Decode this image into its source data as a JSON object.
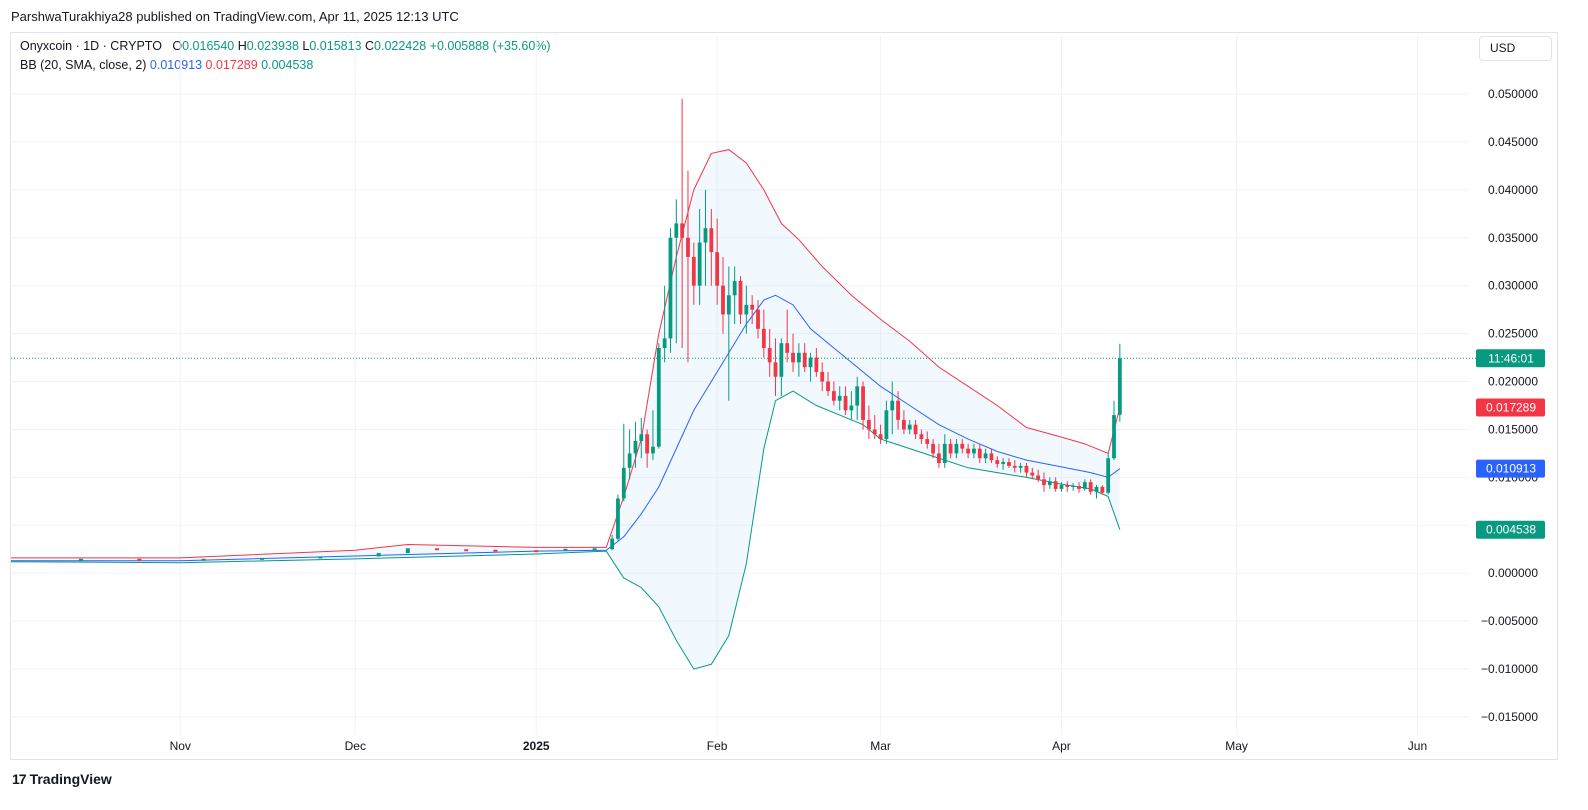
{
  "header": {
    "publisher_line": "ParshwaTurakhiya28 published on TradingView.com, Apr 11, 2025 12:13 UTC"
  },
  "legend": {
    "symbol": "Onyxcoin · 1D · CRYPTO",
    "open_label": "O",
    "open": "0.016540",
    "high_label": "H",
    "high": "0.023938",
    "low_label": "L",
    "low": "0.015813",
    "close_label": "C",
    "close": "0.022428",
    "change": "+0.005888 (+35.60%)",
    "indicator": "BB (20, SMA, close, 2)",
    "bb_basis": "0.010913",
    "bb_upper": "0.017289",
    "bb_lower": "0.004538"
  },
  "currency_button": "USD",
  "footer": {
    "brand": "TradingView",
    "logo_glyph": "17"
  },
  "colors": {
    "up": "#089981",
    "down": "#f23645",
    "basis": "#2962ff",
    "upper": "#f23645",
    "lower": "#089981",
    "band_fill": "#2196f3"
  },
  "chart_data": {
    "type": "candlestick",
    "title": "Onyxcoin · 1D · CRYPTO",
    "ylim": [
      -0.015,
      0.05
    ],
    "y_ticks": [
      "0.050000",
      "0.045000",
      "0.040000",
      "0.035000",
      "0.030000",
      "0.025000",
      "0.020000",
      "0.015000",
      "0.010000",
      "0.005000",
      "0.000000",
      "−0.005000",
      "−0.010000",
      "−0.015000"
    ],
    "x_ticks": [
      {
        "label": "Nov",
        "date": "2024-11-01",
        "bold": false
      },
      {
        "label": "Dec",
        "date": "2024-12-01",
        "bold": false
      },
      {
        "label": "2025",
        "date": "2025-01-01",
        "bold": true
      },
      {
        "label": "Feb",
        "date": "2025-02-01",
        "bold": false
      },
      {
        "label": "Mar",
        "date": "2025-03-01",
        "bold": false
      },
      {
        "label": "Apr",
        "date": "2025-04-01",
        "bold": false
      },
      {
        "label": "May",
        "date": "2025-05-01",
        "bold": false
      },
      {
        "label": "Jun",
        "date": "2025-06-01",
        "bold": false
      }
    ],
    "x_range": [
      "2024-10-03",
      "2025-06-10"
    ],
    "price_badges": [
      {
        "label": "11:46:01",
        "value": 0.022428,
        "color": "#089981"
      },
      {
        "label": "0.017289",
        "value": 0.017289,
        "color": "#f23645"
      },
      {
        "label": "0.010913",
        "value": 0.010913,
        "color": "#2962ff"
      },
      {
        "label": "0.004538",
        "value": 0.004538,
        "color": "#089981"
      }
    ],
    "current_price_line": 0.022428,
    "candles": [
      [
        "2025-01-14",
        0.0025,
        0.004,
        0.0024,
        0.0036
      ],
      [
        "2025-01-15",
        0.0036,
        0.0082,
        0.0034,
        0.0078
      ],
      [
        "2025-01-16",
        0.0078,
        0.0156,
        0.0075,
        0.011
      ],
      [
        "2025-01-17",
        0.011,
        0.015,
        0.0098,
        0.0125
      ],
      [
        "2025-01-18",
        0.0125,
        0.0158,
        0.011,
        0.0138
      ],
      [
        "2025-01-19",
        0.0138,
        0.0162,
        0.012,
        0.0145
      ],
      [
        "2025-01-20",
        0.0145,
        0.015,
        0.011,
        0.0125
      ],
      [
        "2025-01-21",
        0.0125,
        0.017,
        0.0118,
        0.0132
      ],
      [
        "2025-01-22",
        0.0132,
        0.024,
        0.013,
        0.0235
      ],
      [
        "2025-01-23",
        0.0235,
        0.03,
        0.022,
        0.0245
      ],
      [
        "2025-01-24",
        0.0245,
        0.036,
        0.023,
        0.035
      ],
      [
        "2025-01-25",
        0.035,
        0.039,
        0.024,
        0.0365
      ],
      [
        "2025-01-26",
        0.0365,
        0.0495,
        0.0235,
        0.035
      ],
      [
        "2025-01-27",
        0.035,
        0.042,
        0.022,
        0.033
      ],
      [
        "2025-01-28",
        0.033,
        0.0345,
        0.028,
        0.03
      ],
      [
        "2025-01-29",
        0.03,
        0.038,
        0.028,
        0.0345
      ],
      [
        "2025-01-30",
        0.0345,
        0.04,
        0.03,
        0.036
      ],
      [
        "2025-01-31",
        0.036,
        0.038,
        0.03,
        0.0335
      ],
      [
        "2025-02-01",
        0.0335,
        0.037,
        0.028,
        0.03
      ],
      [
        "2025-02-02",
        0.03,
        0.033,
        0.025,
        0.027
      ],
      [
        "2025-02-03",
        0.027,
        0.032,
        0.018,
        0.029
      ],
      [
        "2025-02-04",
        0.029,
        0.032,
        0.026,
        0.0305
      ],
      [
        "2025-02-05",
        0.0305,
        0.031,
        0.026,
        0.027
      ],
      [
        "2025-02-06",
        0.027,
        0.03,
        0.025,
        0.028
      ],
      [
        "2025-02-07",
        0.028,
        0.029,
        0.026,
        0.0275
      ],
      [
        "2025-02-08",
        0.0275,
        0.0285,
        0.0245,
        0.0255
      ],
      [
        "2025-02-09",
        0.0255,
        0.0275,
        0.0225,
        0.0235
      ],
      [
        "2025-02-10",
        0.0235,
        0.0255,
        0.0205,
        0.022
      ],
      [
        "2025-02-11",
        0.022,
        0.0245,
        0.0185,
        0.0205
      ],
      [
        "2025-02-12",
        0.0205,
        0.0245,
        0.0185,
        0.024
      ],
      [
        "2025-02-13",
        0.024,
        0.0275,
        0.022,
        0.023
      ],
      [
        "2025-02-14",
        0.023,
        0.025,
        0.021,
        0.022
      ],
      [
        "2025-02-15",
        0.022,
        0.024,
        0.0205,
        0.023
      ],
      [
        "2025-02-16",
        0.023,
        0.024,
        0.021,
        0.0215
      ],
      [
        "2025-02-17",
        0.0215,
        0.023,
        0.02,
        0.0225
      ],
      [
        "2025-02-18",
        0.0225,
        0.0235,
        0.0205,
        0.021
      ],
      [
        "2025-02-19",
        0.021,
        0.022,
        0.019,
        0.02
      ],
      [
        "2025-02-20",
        0.02,
        0.021,
        0.0185,
        0.019
      ],
      [
        "2025-02-21",
        0.019,
        0.02,
        0.0175,
        0.018
      ],
      [
        "2025-02-22",
        0.018,
        0.0195,
        0.017,
        0.0185
      ],
      [
        "2025-02-23",
        0.0185,
        0.0195,
        0.0165,
        0.017
      ],
      [
        "2025-02-24",
        0.017,
        0.019,
        0.016,
        0.0175
      ],
      [
        "2025-02-25",
        0.0175,
        0.0205,
        0.016,
        0.0195
      ],
      [
        "2025-02-26",
        0.0195,
        0.02,
        0.015,
        0.016
      ],
      [
        "2025-02-27",
        0.016,
        0.0175,
        0.014,
        0.015
      ],
      [
        "2025-02-28",
        0.015,
        0.0165,
        0.014,
        0.0145
      ],
      [
        "2025-03-01",
        0.0145,
        0.0155,
        0.0135,
        0.014
      ],
      [
        "2025-03-02",
        0.014,
        0.018,
        0.0135,
        0.017
      ],
      [
        "2025-03-03",
        0.017,
        0.02,
        0.0145,
        0.018
      ],
      [
        "2025-03-04",
        0.018,
        0.019,
        0.015,
        0.016
      ],
      [
        "2025-03-05",
        0.016,
        0.017,
        0.0145,
        0.015
      ],
      [
        "2025-03-06",
        0.015,
        0.016,
        0.0145,
        0.0155
      ],
      [
        "2025-03-07",
        0.0155,
        0.016,
        0.014,
        0.0145
      ],
      [
        "2025-03-08",
        0.0145,
        0.015,
        0.0135,
        0.014
      ],
      [
        "2025-03-09",
        0.014,
        0.0148,
        0.013,
        0.0135
      ],
      [
        "2025-03-10",
        0.0135,
        0.014,
        0.012,
        0.0125
      ],
      [
        "2025-03-11",
        0.0125,
        0.0135,
        0.011,
        0.0115
      ],
      [
        "2025-03-12",
        0.0115,
        0.0145,
        0.011,
        0.0135
      ],
      [
        "2025-03-13",
        0.0135,
        0.014,
        0.012,
        0.0125
      ],
      [
        "2025-03-14",
        0.0125,
        0.014,
        0.012,
        0.0135
      ],
      [
        "2025-03-15",
        0.0135,
        0.014,
        0.0125,
        0.013
      ],
      [
        "2025-03-16",
        0.013,
        0.0135,
        0.012,
        0.0125
      ],
      [
        "2025-03-17",
        0.0125,
        0.0135,
        0.012,
        0.013
      ],
      [
        "2025-03-18",
        0.013,
        0.0135,
        0.0115,
        0.012
      ],
      [
        "2025-03-19",
        0.012,
        0.013,
        0.0115,
        0.0125
      ],
      [
        "2025-03-20",
        0.0125,
        0.013,
        0.0115,
        0.0118
      ],
      [
        "2025-03-21",
        0.0118,
        0.0122,
        0.011,
        0.0114
      ],
      [
        "2025-03-22",
        0.0114,
        0.012,
        0.0108,
        0.0116
      ],
      [
        "2025-03-23",
        0.0116,
        0.012,
        0.011,
        0.0112
      ],
      [
        "2025-03-24",
        0.0112,
        0.0118,
        0.0105,
        0.011
      ],
      [
        "2025-03-25",
        0.011,
        0.0115,
        0.0105,
        0.0112
      ],
      [
        "2025-03-26",
        0.0112,
        0.0115,
        0.01,
        0.0105
      ],
      [
        "2025-03-27",
        0.0105,
        0.011,
        0.0098,
        0.0102
      ],
      [
        "2025-03-28",
        0.0102,
        0.0108,
        0.0095,
        0.0098
      ],
      [
        "2025-03-29",
        0.0098,
        0.0105,
        0.0085,
        0.0092
      ],
      [
        "2025-03-30",
        0.0092,
        0.01,
        0.0088,
        0.0096
      ],
      [
        "2025-03-31",
        0.0096,
        0.01,
        0.0085,
        0.0088
      ],
      [
        "2025-04-01",
        0.0088,
        0.0095,
        0.0085,
        0.0092
      ],
      [
        "2025-04-02",
        0.0092,
        0.0096,
        0.0085,
        0.009
      ],
      [
        "2025-04-03",
        0.009,
        0.0094,
        0.0086,
        0.0091
      ],
      [
        "2025-04-04",
        0.0091,
        0.0095,
        0.0084,
        0.0088
      ],
      [
        "2025-04-05",
        0.0088,
        0.0098,
        0.0086,
        0.0095
      ],
      [
        "2025-04-06",
        0.0095,
        0.0098,
        0.0082,
        0.0085
      ],
      [
        "2025-04-07",
        0.0085,
        0.0092,
        0.0078,
        0.009
      ],
      [
        "2025-04-08",
        0.009,
        0.0092,
        0.0082,
        0.0084
      ],
      [
        "2025-04-09",
        0.0084,
        0.0125,
        0.0082,
        0.012
      ],
      [
        "2025-04-10",
        0.012,
        0.018,
        0.0118,
        0.0165
      ],
      [
        "2025-04-11",
        0.01654,
        0.023938,
        0.015813,
        0.022428
      ]
    ],
    "bb_upper_line": [
      [
        "2024-10-03",
        0.0016
      ],
      [
        "2024-11-01",
        0.0016
      ],
      [
        "2024-12-01",
        0.0024
      ],
      [
        "2024-12-10",
        0.003
      ],
      [
        "2025-01-01",
        0.0027
      ],
      [
        "2025-01-13",
        0.0027
      ],
      [
        "2025-01-16",
        0.008
      ],
      [
        "2025-01-19",
        0.014
      ],
      [
        "2025-01-22",
        0.025
      ],
      [
        "2025-01-25",
        0.033
      ],
      [
        "2025-01-28",
        0.04
      ],
      [
        "2025-01-31",
        0.0438
      ],
      [
        "2025-02-03",
        0.0442
      ],
      [
        "2025-02-06",
        0.0428
      ],
      [
        "2025-02-09",
        0.04
      ],
      [
        "2025-02-12",
        0.0365
      ],
      [
        "2025-02-15",
        0.0348
      ],
      [
        "2025-02-19",
        0.032
      ],
      [
        "2025-02-24",
        0.029
      ],
      [
        "2025-03-01",
        0.0265
      ],
      [
        "2025-03-06",
        0.0242
      ],
      [
        "2025-03-11",
        0.0215
      ],
      [
        "2025-03-16",
        0.0195
      ],
      [
        "2025-03-21",
        0.0175
      ],
      [
        "2025-03-26",
        0.0152
      ],
      [
        "2025-04-01",
        0.0142
      ],
      [
        "2025-04-05",
        0.0135
      ],
      [
        "2025-04-09",
        0.0125
      ],
      [
        "2025-04-11",
        0.01729
      ]
    ],
    "bb_basis_line": [
      [
        "2024-10-03",
        0.0013
      ],
      [
        "2024-11-01",
        0.0013
      ],
      [
        "2024-12-01",
        0.0018
      ],
      [
        "2025-01-01",
        0.0023
      ],
      [
        "2025-01-13",
        0.0024
      ],
      [
        "2025-01-16",
        0.0038
      ],
      [
        "2025-01-19",
        0.0062
      ],
      [
        "2025-01-22",
        0.009
      ],
      [
        "2025-01-25",
        0.013
      ],
      [
        "2025-01-28",
        0.017
      ],
      [
        "2025-01-31",
        0.02
      ],
      [
        "2025-02-03",
        0.023
      ],
      [
        "2025-02-06",
        0.026
      ],
      [
        "2025-02-09",
        0.0285
      ],
      [
        "2025-02-11",
        0.029
      ],
      [
        "2025-02-14",
        0.028
      ],
      [
        "2025-02-17",
        0.0255
      ],
      [
        "2025-02-21",
        0.0235
      ],
      [
        "2025-02-25",
        0.0215
      ],
      [
        "2025-03-01",
        0.0195
      ],
      [
        "2025-03-06",
        0.0175
      ],
      [
        "2025-03-11",
        0.0155
      ],
      [
        "2025-03-16",
        0.014
      ],
      [
        "2025-03-21",
        0.0127
      ],
      [
        "2025-03-26",
        0.0118
      ],
      [
        "2025-04-01",
        0.0111
      ],
      [
        "2025-04-06",
        0.0105
      ],
      [
        "2025-04-09",
        0.01
      ],
      [
        "2025-04-11",
        0.01091
      ]
    ],
    "bb_lower_line": [
      [
        "2024-10-03",
        0.0012
      ],
      [
        "2024-11-01",
        0.0011
      ],
      [
        "2024-12-01",
        0.0015
      ],
      [
        "2025-01-01",
        0.002
      ],
      [
        "2025-01-13",
        0.0023
      ],
      [
        "2025-01-16",
        -0.0005
      ],
      [
        "2025-01-19",
        -0.0015
      ],
      [
        "2025-01-22",
        -0.0035
      ],
      [
        "2025-01-25",
        -0.007
      ],
      [
        "2025-01-28",
        -0.01
      ],
      [
        "2025-01-31",
        -0.0095
      ],
      [
        "2025-02-03",
        -0.0065
      ],
      [
        "2025-02-06",
        0.001
      ],
      [
        "2025-02-09",
        0.013
      ],
      [
        "2025-02-11",
        0.018
      ],
      [
        "2025-02-14",
        0.019
      ],
      [
        "2025-02-18",
        0.0175
      ],
      [
        "2025-02-22",
        0.0165
      ],
      [
        "2025-02-26",
        0.0155
      ],
      [
        "2025-03-01",
        0.014
      ],
      [
        "2025-03-06",
        0.013
      ],
      [
        "2025-03-11",
        0.012
      ],
      [
        "2025-03-16",
        0.011
      ],
      [
        "2025-03-21",
        0.0105
      ],
      [
        "2025-03-26",
        0.01
      ],
      [
        "2025-04-01",
        0.0093
      ],
      [
        "2025-04-06",
        0.0088
      ],
      [
        "2025-04-09",
        0.008
      ],
      [
        "2025-04-11",
        0.00454
      ]
    ],
    "pre_jan_closes": [
      [
        "2024-10-05",
        0.0014
      ],
      [
        "2024-10-15",
        0.0014
      ],
      [
        "2024-10-25",
        0.00135
      ],
      [
        "2024-11-05",
        0.0014
      ],
      [
        "2024-11-15",
        0.0015
      ],
      [
        "2024-11-25",
        0.00165
      ],
      [
        "2024-12-05",
        0.002
      ],
      [
        "2024-12-10",
        0.0025
      ],
      [
        "2024-12-15",
        0.0024
      ],
      [
        "2024-12-20",
        0.00235
      ],
      [
        "2024-12-25",
        0.0023
      ],
      [
        "2025-01-01",
        0.00225
      ],
      [
        "2025-01-06",
        0.00245
      ],
      [
        "2025-01-11",
        0.0025
      ]
    ]
  }
}
